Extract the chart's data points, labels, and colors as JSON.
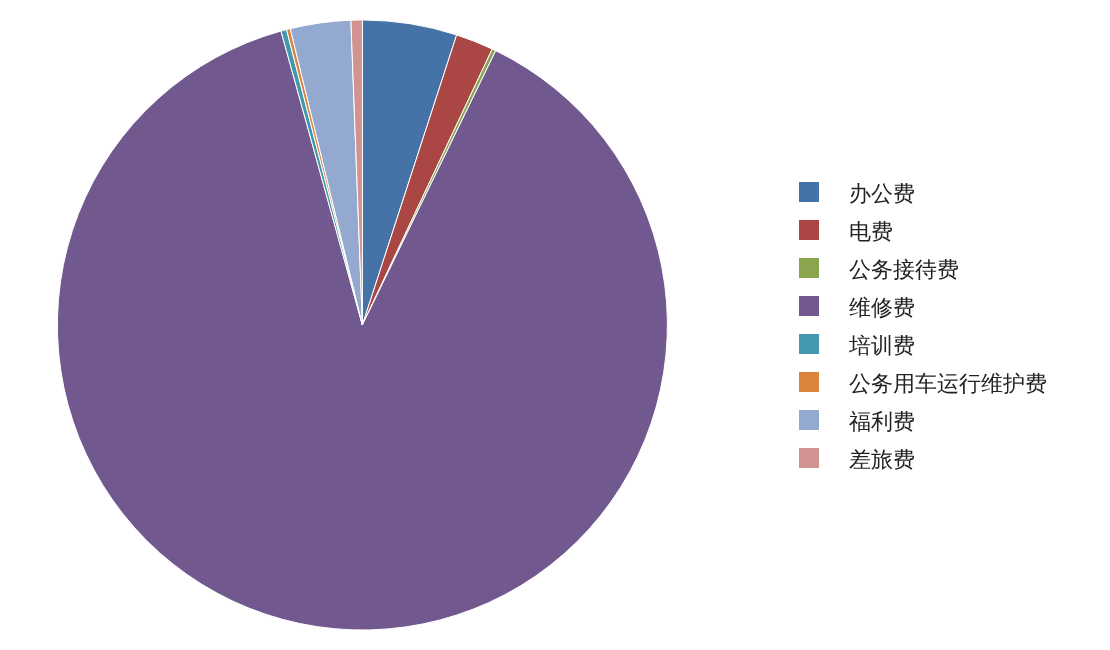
{
  "chart_data": {
    "type": "pie",
    "categories": [
      "办公费",
      "电费",
      "公务接待费",
      "维修费",
      "培训费",
      "公务用车运行维护费",
      "福利费",
      "差旅费"
    ],
    "values": [
      5.0,
      2.0,
      0.2,
      88.5,
      0.3,
      0.2,
      3.2,
      0.6
    ],
    "colors": [
      "#4572a7",
      "#aa4643",
      "#89a54e",
      "#71588f",
      "#4198af",
      "#db843d",
      "#93a9cf",
      "#d19392"
    ],
    "legend": "right"
  }
}
